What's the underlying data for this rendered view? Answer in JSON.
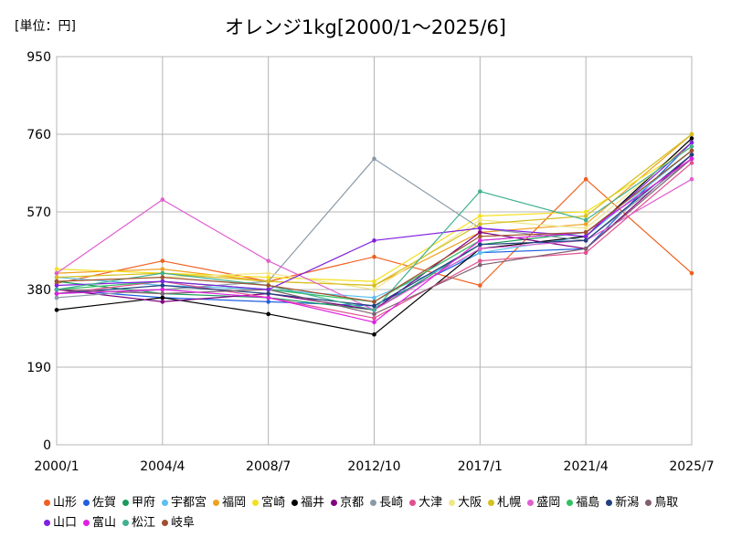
{
  "header": {
    "unit": "[単位：円]",
    "title": "オレンジ1kg[2000/1～2025/6]"
  },
  "chart_data": {
    "type": "line",
    "title": "オレンジ1kg[2000/1～2025/6]",
    "unit": "[単位：円]",
    "xlabel": "",
    "ylabel": "",
    "x_ticks": [
      "2000/1",
      "2004/4",
      "2008/7",
      "2012/10",
      "2017/1",
      "2021/4",
      "2025/7"
    ],
    "y_ticks": [
      0,
      190,
      380,
      570,
      760,
      950
    ],
    "ylim": [
      0,
      950
    ],
    "grid": true,
    "legend_position": "bottom",
    "series": [
      {
        "name": "山形",
        "color": "#f06020",
        "values": [
          395,
          450,
          400,
          460,
          390,
          650,
          420
        ]
      },
      {
        "name": "佐賀",
        "color": "#1f5fe0",
        "values": [
          380,
          360,
          350,
          340,
          470,
          480,
          740
        ]
      },
      {
        "name": "甲府",
        "color": "#1a9a5c",
        "values": [
          400,
          370,
          360,
          330,
          490,
          520,
          700
        ]
      },
      {
        "name": "宇都宮",
        "color": "#5ac0f0",
        "values": [
          410,
          390,
          380,
          360,
          470,
          510,
          720
        ]
      },
      {
        "name": "福岡",
        "color": "#f0a020",
        "values": [
          420,
          430,
          400,
          390,
          520,
          540,
          760
        ]
      },
      {
        "name": "宮崎",
        "color": "#f5e020",
        "values": [
          430,
          420,
          410,
          400,
          560,
          570,
          730
        ]
      },
      {
        "name": "福井",
        "color": "#000000",
        "values": [
          330,
          360,
          320,
          270,
          480,
          510,
          750
        ]
      },
      {
        "name": "京都",
        "color": "#800080",
        "values": [
          380,
          350,
          370,
          330,
          520,
          480,
          710
        ]
      },
      {
        "name": "長崎",
        "color": "#8a9aa8",
        "values": [
          360,
          380,
          400,
          700,
          530,
          500,
          700
        ]
      },
      {
        "name": "大津",
        "color": "#e05090",
        "values": [
          370,
          400,
          360,
          310,
          450,
          470,
          690
        ]
      },
      {
        "name": "大阪",
        "color": "#f0e68c",
        "values": [
          400,
          410,
          420,
          380,
          550,
          530,
          740
        ]
      },
      {
        "name": "札幌",
        "color": "#d4c020",
        "values": [
          410,
          420,
          400,
          390,
          540,
          560,
          760
        ]
      },
      {
        "name": "盛岡",
        "color": "#e060d0",
        "values": [
          420,
          600,
          450,
          330,
          480,
          500,
          650
        ]
      },
      {
        "name": "福島",
        "color": "#30c060",
        "values": [
          380,
          400,
          380,
          350,
          500,
          520,
          720
        ]
      },
      {
        "name": "新潟",
        "color": "#204080",
        "values": [
          370,
          390,
          370,
          340,
          490,
          500,
          710
        ]
      },
      {
        "name": "鳥取",
        "color": "#806070",
        "values": [
          380,
          370,
          380,
          320,
          440,
          480,
          700
        ]
      },
      {
        "name": "山口",
        "color": "#8020e0",
        "values": [
          390,
          400,
          380,
          500,
          530,
          510,
          740
        ]
      },
      {
        "name": "富山",
        "color": "#e020e0",
        "values": [
          370,
          380,
          360,
          300,
          500,
          520,
          700
        ]
      },
      {
        "name": "松江",
        "color": "#40b090",
        "values": [
          380,
          420,
          390,
          330,
          620,
          550,
          730
        ]
      },
      {
        "name": "岐阜",
        "color": "#a05030",
        "values": [
          400,
          410,
          390,
          350,
          510,
          520,
          720
        ]
      }
    ]
  }
}
